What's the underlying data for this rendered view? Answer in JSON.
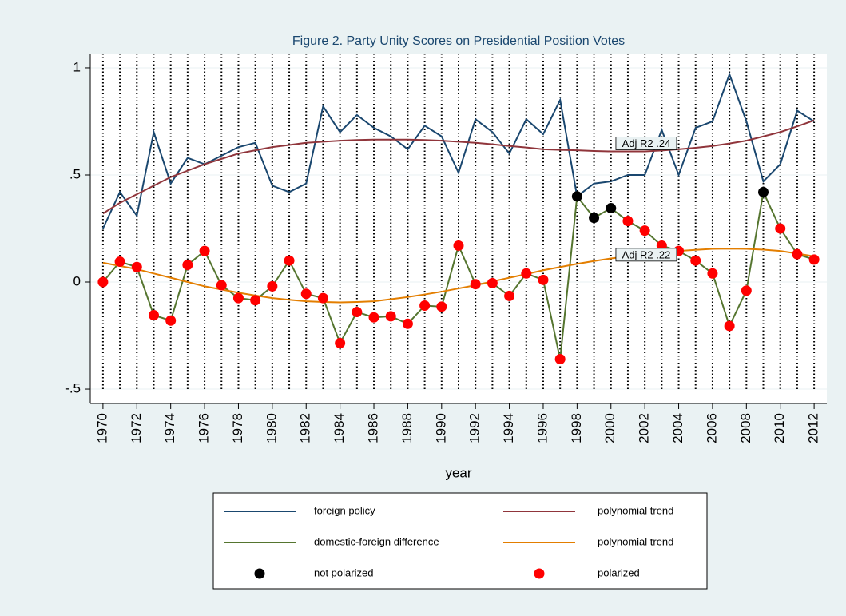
{
  "chart_data": {
    "type": "line",
    "title": "Figure 2. Party Unity Scores on Presidential Position Votes",
    "x_label": "year",
    "x": [
      1970,
      1971,
      1972,
      1973,
      1974,
      1975,
      1976,
      1977,
      1978,
      1979,
      1980,
      1981,
      1982,
      1983,
      1984,
      1985,
      1986,
      1987,
      1988,
      1989,
      1990,
      1991,
      1992,
      1993,
      1994,
      1995,
      1996,
      1997,
      1998,
      1999,
      2000,
      2001,
      2002,
      2003,
      2004,
      2005,
      2006,
      2007,
      2008,
      2009,
      2010,
      2011,
      2012
    ],
    "xlim": [
      1969.25,
      2012.75
    ],
    "xticks": [
      1970,
      1972,
      1974,
      1976,
      1978,
      1980,
      1982,
      1984,
      1986,
      1988,
      1990,
      1992,
      1994,
      1996,
      1998,
      2000,
      2002,
      2004,
      2006,
      2008,
      2010,
      2012
    ],
    "ylim": [
      -0.567,
      1.067
    ],
    "yticks": [
      {
        "value": -0.5,
        "label": "-.5"
      },
      0,
      {
        "value": 0.5,
        "label": ".5"
      },
      1
    ],
    "grid": true,
    "vertical_grid": "every-x",
    "series": [
      {
        "name": "foreign policy",
        "type": "line",
        "color": "#1a476f",
        "values": [
          0.25,
          0.42,
          0.31,
          0.7,
          0.46,
          0.58,
          0.55,
          0.59,
          0.63,
          0.65,
          0.45,
          0.42,
          0.46,
          0.82,
          0.7,
          0.78,
          0.72,
          0.68,
          0.62,
          0.73,
          0.68,
          0.51,
          0.76,
          0.7,
          0.6,
          0.76,
          0.69,
          0.85,
          0.4,
          0.46,
          0.47,
          0.5,
          0.5,
          0.71,
          0.5,
          0.72,
          0.75,
          0.97,
          0.75,
          0.47,
          0.55,
          0.8,
          0.75
        ]
      },
      {
        "name": "polynomial trend",
        "type": "line",
        "color": "#90353b",
        "values": [
          0.32,
          0.37,
          0.41,
          0.45,
          0.49,
          0.52,
          0.55,
          0.575,
          0.6,
          0.615,
          0.63,
          0.64,
          0.65,
          0.655,
          0.66,
          0.663,
          0.665,
          0.665,
          0.665,
          0.663,
          0.66,
          0.655,
          0.65,
          0.643,
          0.635,
          0.628,
          0.62,
          0.617,
          0.615,
          0.612,
          0.61,
          0.61,
          0.61,
          0.614,
          0.62,
          0.627,
          0.635,
          0.647,
          0.66,
          0.68,
          0.7,
          0.727,
          0.755
        ]
      },
      {
        "name": "domestic-foreign difference",
        "type": "line",
        "color": "#55752f",
        "values": [
          0.0,
          0.095,
          0.07,
          -0.155,
          -0.18,
          0.08,
          0.145,
          -0.015,
          -0.075,
          -0.085,
          -0.02,
          0.1,
          -0.055,
          -0.075,
          -0.285,
          -0.14,
          -0.165,
          -0.16,
          -0.195,
          -0.11,
          -0.115,
          0.17,
          -0.01,
          -0.005,
          -0.065,
          0.04,
          0.01,
          -0.36,
          0.4,
          0.3,
          0.345,
          0.285,
          0.24,
          0.17,
          0.145,
          0.1,
          0.04,
          -0.205,
          -0.04,
          0.42,
          0.25,
          0.13,
          0.105
        ]
      },
      {
        "name": "polynomial trend",
        "type": "line",
        "color": "#e37e00",
        "values": [
          0.09,
          0.075,
          0.06,
          0.04,
          0.02,
          0.0,
          -0.02,
          -0.035,
          -0.05,
          -0.063,
          -0.075,
          -0.083,
          -0.09,
          -0.093,
          -0.095,
          -0.093,
          -0.09,
          -0.08,
          -0.07,
          -0.058,
          -0.045,
          -0.03,
          -0.015,
          0.003,
          0.02,
          0.037,
          0.055,
          0.07,
          0.085,
          0.098,
          0.11,
          0.12,
          0.13,
          0.138,
          0.145,
          0.15,
          0.155,
          0.156,
          0.155,
          0.151,
          0.145,
          0.133,
          0.12
        ]
      },
      {
        "name": "not polarized",
        "type": "scatter",
        "color": "#000000",
        "values": [
          null,
          null,
          null,
          null,
          null,
          null,
          null,
          null,
          null,
          null,
          null,
          null,
          null,
          null,
          null,
          null,
          null,
          null,
          null,
          null,
          null,
          null,
          null,
          null,
          null,
          null,
          null,
          null,
          0.4,
          0.3,
          0.345,
          null,
          null,
          null,
          null,
          null,
          null,
          null,
          null,
          0.42,
          null,
          null,
          null
        ]
      },
      {
        "name": "polarized",
        "type": "scatter",
        "color": "#ff0000",
        "values": [
          0.0,
          0.095,
          0.07,
          -0.155,
          -0.18,
          0.08,
          0.145,
          -0.015,
          -0.075,
          -0.085,
          -0.02,
          0.1,
          -0.055,
          -0.075,
          -0.285,
          -0.14,
          -0.165,
          -0.16,
          -0.195,
          -0.11,
          -0.115,
          0.17,
          -0.01,
          -0.005,
          -0.065,
          0.04,
          0.01,
          -0.36,
          null,
          null,
          null,
          0.285,
          0.24,
          0.17,
          0.145,
          0.1,
          0.04,
          -0.205,
          -0.04,
          null,
          0.25,
          0.13,
          0.105
        ]
      }
    ],
    "annotations": [
      {
        "text": "Adj R2 .24",
        "series": 1
      },
      {
        "text": "Adj R2 .22",
        "series": 3
      }
    ]
  }
}
